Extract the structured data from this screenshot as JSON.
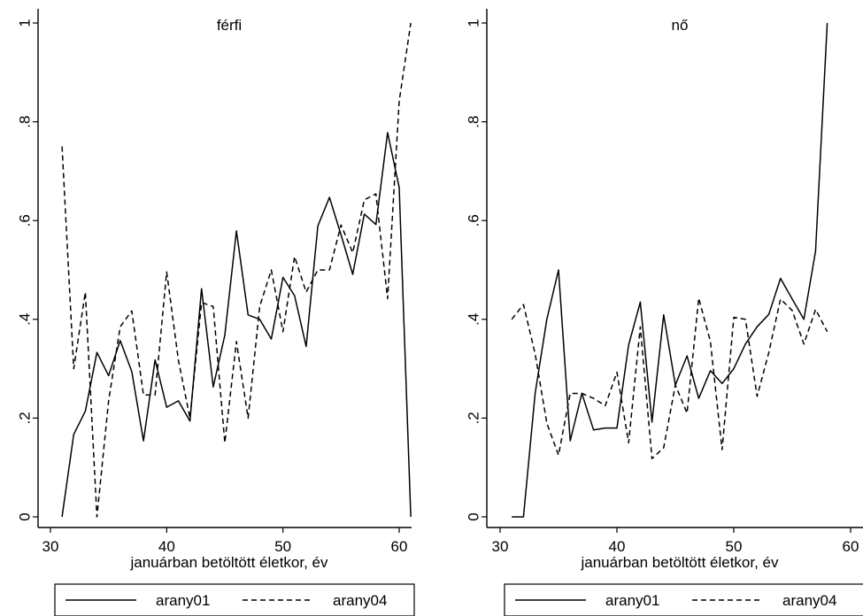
{
  "chart_data": [
    {
      "type": "line",
      "title": "férfi",
      "xlabel": "januárban betöltött életkor, év",
      "ylabel": "",
      "xlim": [
        30,
        61
      ],
      "ylim": [
        0,
        1
      ],
      "xticks": [
        "30",
        "40",
        "50",
        "60"
      ],
      "yticks": [
        "0",
        ".2",
        ".4",
        ".6",
        ".8",
        "1"
      ],
      "legend_position": "bottom",
      "grid": false,
      "series": [
        {
          "name": "arany01",
          "style": "solid",
          "x": [
            31,
            32,
            33,
            34,
            35,
            36,
            37,
            38,
            39,
            40,
            41,
            42,
            43,
            44,
            45,
            46,
            47,
            48,
            49,
            50,
            51,
            52,
            53,
            54,
            55,
            56,
            57,
            58,
            59,
            60,
            61
          ],
          "y": [
            0,
            0.167,
            0.214,
            0.333,
            0.286,
            0.357,
            0.294,
            0.154,
            0.318,
            0.222,
            0.235,
            0.194,
            0.462,
            0.263,
            0.368,
            0.579,
            0.409,
            0.4,
            0.36,
            0.485,
            0.448,
            0.345,
            0.589,
            0.647,
            0.571,
            0.491,
            0.613,
            0.592,
            0.778,
            0.667,
            0
          ]
        },
        {
          "name": "arany04",
          "style": "dashed",
          "x": [
            31,
            32,
            33,
            34,
            35,
            36,
            37,
            38,
            39,
            40,
            41,
            42,
            43,
            44,
            45,
            46,
            47,
            48,
            49,
            50,
            51,
            52,
            53,
            54,
            55,
            56,
            57,
            58,
            59,
            60,
            61
          ],
          "y": [
            0.75,
            0.3,
            0.455,
            0,
            0.235,
            0.385,
            0.417,
            0.247,
            0.247,
            0.496,
            0.318,
            0.2,
            0.434,
            0.426,
            0.15,
            0.355,
            0.2,
            0.426,
            0.5,
            0.375,
            0.527,
            0.455,
            0.5,
            0.5,
            0.591,
            0.535,
            0.642,
            0.654,
            0.442,
            0.842,
            1.0
          ]
        }
      ]
    },
    {
      "type": "line",
      "title": "nő",
      "xlabel": "januárban betöltött életkor, év",
      "ylabel": "",
      "xlim": [
        30,
        61
      ],
      "ylim": [
        0,
        1
      ],
      "xticks": [
        "30",
        "40",
        "50",
        "60"
      ],
      "yticks": [
        "0",
        ".2",
        ".4",
        ".6",
        ".8",
        "1"
      ],
      "legend_position": "bottom",
      "grid": false,
      "series": [
        {
          "name": "arany01",
          "style": "solid",
          "x": [
            31,
            32,
            33,
            34,
            35,
            36,
            37,
            38,
            39,
            40,
            41,
            42,
            43,
            44,
            45,
            46,
            47,
            48,
            49,
            50,
            51,
            52,
            53,
            54,
            55,
            56,
            57,
            58
          ],
          "y": [
            0,
            0,
            0.25,
            0.4,
            0.5,
            0.154,
            0.25,
            0.176,
            0.18,
            0.18,
            0.348,
            0.435,
            0.192,
            0.409,
            0.267,
            0.326,
            0.24,
            0.296,
            0.27,
            0.3,
            0.35,
            0.385,
            0.41,
            0.483,
            0.441,
            0.4,
            0.538,
            1.0
          ]
        },
        {
          "name": "arany04",
          "style": "dashed",
          "x": [
            31,
            32,
            33,
            34,
            35,
            36,
            37,
            38,
            39,
            40,
            41,
            42,
            43,
            44,
            45,
            46,
            47,
            48,
            49,
            50,
            51,
            52,
            53,
            54,
            55,
            56,
            57,
            58
          ],
          "y": [
            0.4,
            0.43,
            0.33,
            0.19,
            0.125,
            0.25,
            0.25,
            0.24,
            0.225,
            0.293,
            0.15,
            0.385,
            0.118,
            0.14,
            0.267,
            0.21,
            0.443,
            0.355,
            0.136,
            0.404,
            0.4,
            0.244,
            0.333,
            0.441,
            0.418,
            0.35,
            0.42,
            0.375
          ]
        }
      ]
    }
  ]
}
